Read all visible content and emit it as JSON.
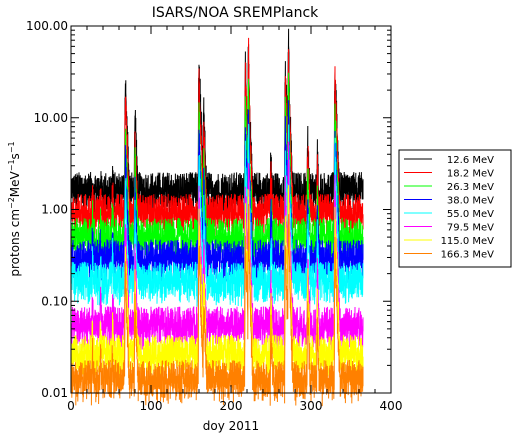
{
  "chart_data": {
    "type": "line",
    "title": "ISARS/NOA  SREMPlanck",
    "xlabel": "doy 2011",
    "ylabel": {
      "base": "protons cm",
      "sup1": "−2",
      "mid1": "MeV",
      "sup2": "−1",
      "mid2": "s",
      "sup3": "−1"
    },
    "xlim": [
      0,
      400
    ],
    "ylim": [
      0.01,
      100
    ],
    "yscale": "log",
    "xticks": [
      0,
      100,
      200,
      300,
      400
    ],
    "xtick_labels": [
      "0",
      "100",
      "200",
      "300",
      "400"
    ],
    "yticks": [
      0.01,
      0.1,
      1,
      10,
      100
    ],
    "ytick_labels": [
      "0.01",
      "0.10",
      "1.00",
      "10.00",
      "100.00"
    ],
    "grid": false,
    "legend_position": "right",
    "x_range": [
      1,
      365
    ],
    "event_peaks_doy": [
      27,
      37,
      52,
      68,
      80,
      160,
      166,
      218,
      222,
      250,
      268,
      272,
      296,
      308,
      330
    ],
    "series": [
      {
        "name": "12.6 MeV",
        "color": "#000000",
        "baseline": 1.9,
        "peaks": [
          2.4,
          2.6,
          2.7,
          30,
          13,
          47,
          13,
          46,
          28,
          4.5,
          40,
          32,
          7,
          4.5,
          40
        ]
      },
      {
        "name": "18.2 MeV",
        "color": "#ff0000",
        "baseline": 1.1,
        "peaks": [
          1.7,
          1.8,
          2.0,
          20,
          8,
          28,
          8,
          30,
          20,
          3,
          27,
          22,
          5,
          3,
          27
        ]
      },
      {
        "name": "26.3 MeV",
        "color": "#00ff00",
        "baseline": 0.6,
        "peaks": [
          1.0,
          1.0,
          1.2,
          9,
          4,
          12,
          4,
          15,
          10,
          1.7,
          14,
          11,
          2.8,
          1.7,
          14
        ]
      },
      {
        "name": "38.0 MeV",
        "color": "#0000ff",
        "baseline": 0.35,
        "peaks": [
          0.6,
          0.6,
          0.7,
          4,
          2,
          7,
          2.2,
          8,
          5,
          1.0,
          8,
          6,
          1.6,
          1.0,
          8
        ]
      },
      {
        "name": "55.0 MeV",
        "color": "#00ffff",
        "baseline": 0.2,
        "peaks": [
          0.35,
          0.35,
          0.4,
          2.2,
          1.0,
          4,
          1.2,
          4.5,
          3,
          0.6,
          4.5,
          3.5,
          0.9,
          0.6,
          4.5
        ]
      },
      {
        "name": "79.5 MeV",
        "color": "#ff00ff",
        "baseline": 0.065,
        "peaks": [
          0.12,
          0.12,
          0.14,
          0.9,
          0.4,
          1.6,
          0.45,
          1.8,
          1.2,
          0.22,
          1.8,
          1.4,
          0.35,
          0.22,
          1.8
        ]
      },
      {
        "name": "115.0 MeV",
        "color": "#ffff00",
        "baseline": 0.032,
        "peaks": [
          0.06,
          0.06,
          0.07,
          0.45,
          0.2,
          0.8,
          0.22,
          0.9,
          0.6,
          0.11,
          0.9,
          0.7,
          0.18,
          0.11,
          0.9
        ]
      },
      {
        "name": "166.3 MeV",
        "color": "#ff8000",
        "baseline": 0.017,
        "peaks": [
          0.03,
          0.03,
          0.035,
          0.22,
          0.1,
          0.4,
          0.11,
          0.45,
          0.3,
          0.055,
          0.45,
          0.35,
          0.09,
          0.055,
          0.45
        ]
      }
    ]
  }
}
